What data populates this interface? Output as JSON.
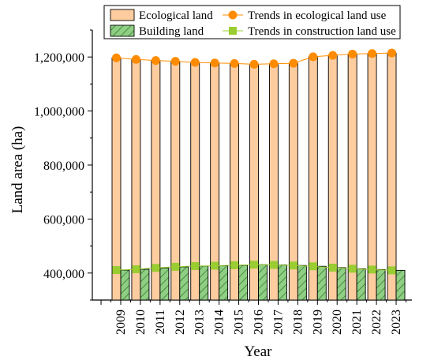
{
  "chart_data": {
    "type": "bar",
    "title": "",
    "xlabel": "Year",
    "ylabel": "Land area (ha)",
    "ylim": [
      300000,
      1300000
    ],
    "yticks": [
      400000,
      600000,
      800000,
      1000000,
      1200000
    ],
    "ytick_labels": [
      "400,000",
      "600,000",
      "800,000",
      "1,000,000",
      "1,200,000"
    ],
    "categories": [
      "2009",
      "2010",
      "2011",
      "2012",
      "2013",
      "2014",
      "2015",
      "2016",
      "2017",
      "2018",
      "2019",
      "2020",
      "2021",
      "2022",
      "2023"
    ],
    "series": [
      {
        "name": "Ecological land",
        "kind": "bar",
        "fill": "#FDCC9F",
        "stroke": "#000000",
        "values": [
          1197000,
          1191000,
          1187000,
          1184000,
          1180000,
          1178000,
          1176000,
          1173000,
          1175000,
          1177000,
          1201000,
          1206000,
          1211000,
          1213000,
          1215000
        ]
      },
      {
        "name": "Building land",
        "kind": "bar",
        "fill": "#8FCF83",
        "hatch": "diagonal",
        "stroke": "#000000",
        "values": [
          411000,
          414000,
          419000,
          423000,
          426000,
          427000,
          429000,
          431000,
          430000,
          428000,
          425000,
          420000,
          416000,
          413000,
          410000
        ]
      },
      {
        "name": "Trends in ecological land use",
        "kind": "line-marker",
        "marker": "circle",
        "color": "#FF8C00",
        "values": [
          1197000,
          1191000,
          1187000,
          1184000,
          1180000,
          1178000,
          1176000,
          1173000,
          1175000,
          1177000,
          1201000,
          1206000,
          1211000,
          1213000,
          1215000
        ]
      },
      {
        "name": "Trends in construction land use",
        "kind": "line-marker",
        "marker": "square",
        "color": "#9ACD32",
        "values": [
          411000,
          414000,
          419000,
          423000,
          426000,
          427000,
          429000,
          431000,
          430000,
          428000,
          425000,
          420000,
          416000,
          413000,
          410000
        ]
      }
    ],
    "legend": {
      "placement": "top",
      "entries": [
        "Ecological land",
        "Trends in ecological land use",
        "Building land",
        "Trends in construction land use"
      ]
    },
    "grid": false
  }
}
